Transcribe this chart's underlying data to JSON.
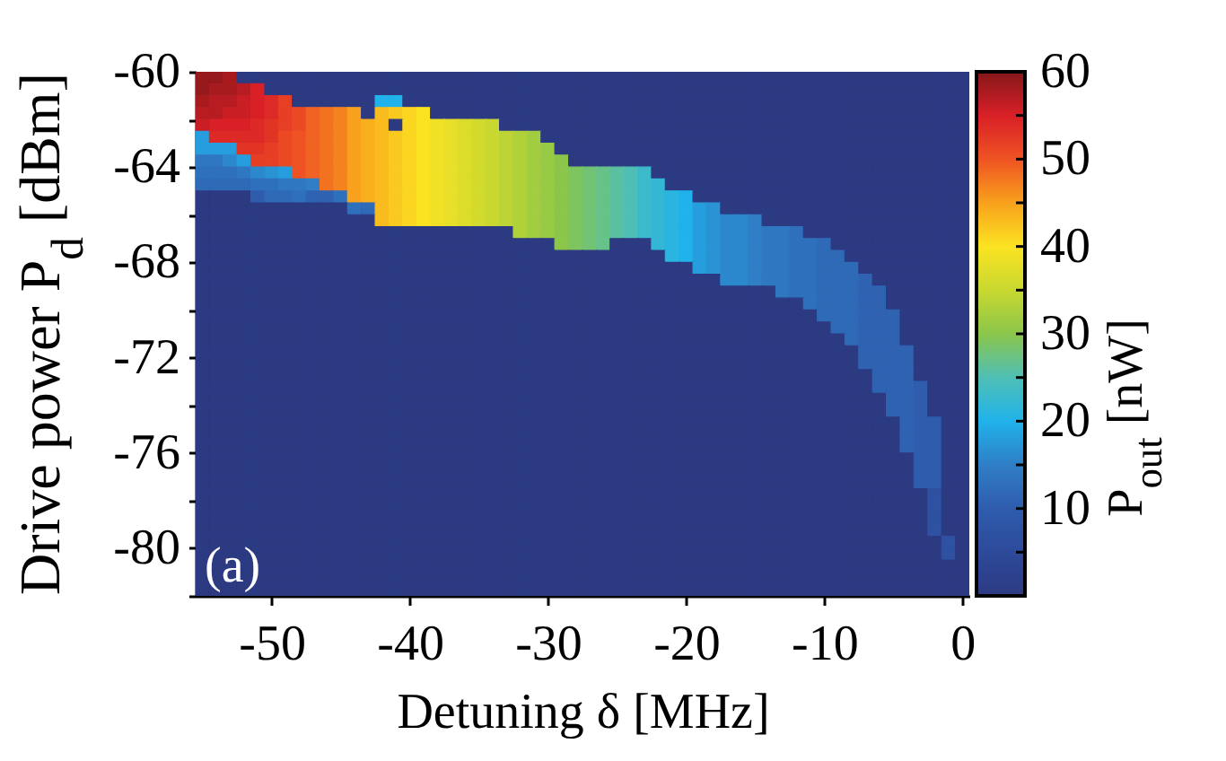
{
  "chart_data": {
    "type": "heatmap",
    "xlabel": "Detuning δ [MHz]",
    "ylabel": "Drive power P$_{d}$ [dBm]",
    "clabel": "P$_{out}$ [nW]",
    "annotations": [
      "(a)"
    ],
    "x": [
      -55,
      -54,
      -53,
      -52,
      -51,
      -50,
      -49,
      -48,
      -47,
      -46,
      -45,
      -44,
      -43,
      -42,
      -41,
      -40,
      -39,
      -38,
      -37,
      -36,
      -35,
      -34,
      -33,
      -32,
      -31,
      -30,
      -29,
      -28,
      -27,
      -26,
      -25,
      -24,
      -23,
      -22,
      -21,
      -20,
      -19,
      -18,
      -17,
      -16,
      -15,
      -14,
      -13,
      -12,
      -11,
      -10,
      -9,
      -8,
      -7,
      -6,
      -5,
      -4,
      -3,
      -2,
      -1,
      0
    ],
    "y": [
      -60.25,
      -60.75,
      -61.25,
      -61.75,
      -62.25,
      -62.75,
      -63.25,
      -63.75,
      -64.25,
      -64.75,
      -65.25,
      -65.75,
      -66.25,
      -66.75,
      -67.25,
      -67.75,
      -68.25,
      -68.75,
      -69.25,
      -69.75,
      -70.25,
      -70.75,
      -71.25,
      -71.75,
      -72.25,
      -72.75,
      -73.25,
      -73.75,
      -74.25,
      -74.75,
      -75.25,
      -75.75,
      -76.25,
      -76.75,
      -77.25,
      -77.75,
      -78.25,
      -78.75,
      -79.25,
      -79.75,
      -80.25,
      -80.75,
      -81.25,
      -81.75
    ],
    "xlim": [
      -55.5,
      0.5
    ],
    "ylim": [
      -82,
      -60
    ],
    "xticks": [
      -50,
      -40,
      -30,
      -20,
      -10,
      0
    ],
    "yticks": [
      {
        "value": -82,
        "label": null
      },
      -80,
      {
        "value": -78,
        "label": null
      },
      -76,
      {
        "value": -74,
        "label": null
      },
      -72,
      {
        "value": -70,
        "label": null
      },
      -68,
      {
        "value": -66,
        "label": null
      },
      -64,
      {
        "value": -62,
        "label": null
      },
      -60
    ],
    "clim": [
      0,
      60
    ],
    "cticks": [
      {
        "value": 5,
        "label": null
      },
      10,
      {
        "value": 15,
        "label": null
      },
      20,
      {
        "value": 25,
        "label": null
      },
      30,
      {
        "value": 35,
        "label": null
      },
      40,
      {
        "value": 45,
        "label": null
      },
      50,
      {
        "value": 55,
        "label": null
      },
      60
    ],
    "colors": [
      "#2c3a82",
      "#2d4a9a",
      "#2f5cad",
      "#2f7ec6",
      "#20b2ea",
      "#4fbfb5",
      "#8bc64a",
      "#c8d830",
      "#fbe322",
      "#f8a11c",
      "#ef5323",
      "#d92027",
      "#85171a"
    ],
    "cells": [
      [
        59,
        59,
        58,
        0,
        0,
        0,
        0,
        0,
        0,
        0,
        0,
        0,
        0,
        0,
        0,
        0,
        0,
        0,
        0,
        0,
        0,
        0,
        0,
        0,
        0,
        0,
        0,
        0,
        0,
        0,
        0,
        0,
        0,
        0,
        0,
        0,
        0,
        0,
        0,
        0,
        0,
        0,
        0,
        0,
        0,
        0,
        0,
        0,
        0,
        0,
        0,
        0,
        0,
        0,
        0,
        0
      ],
      [
        59,
        58,
        58,
        57,
        55,
        0,
        0,
        0,
        0,
        0,
        0,
        0,
        0,
        0,
        0,
        0,
        0,
        0,
        0,
        0,
        0,
        0,
        0,
        0,
        0,
        0,
        0,
        0,
        0,
        0,
        0,
        0,
        0,
        0,
        0,
        0,
        0,
        0,
        0,
        0,
        0,
        0,
        0,
        0,
        0,
        0,
        0,
        0,
        0,
        0,
        0,
        0,
        0,
        0,
        0,
        0
      ],
      [
        58,
        57,
        57,
        56,
        55,
        54,
        52,
        0,
        0,
        0,
        0,
        0,
        0,
        20,
        20,
        0,
        0,
        0,
        0,
        0,
        0,
        0,
        0,
        0,
        0,
        0,
        0,
        0,
        0,
        0,
        0,
        0,
        0,
        0,
        0,
        0,
        0,
        0,
        0,
        0,
        0,
        0,
        0,
        0,
        0,
        0,
        0,
        0,
        0,
        0,
        0,
        0,
        0,
        0,
        0,
        0
      ],
      [
        57,
        57,
        56,
        56,
        55,
        54,
        52,
        51,
        49,
        48,
        47,
        45,
        0,
        43,
        42,
        41,
        40,
        0,
        0,
        0,
        0,
        0,
        0,
        0,
        0,
        0,
        0,
        0,
        0,
        0,
        0,
        0,
        0,
        0,
        0,
        0,
        0,
        0,
        0,
        0,
        0,
        0,
        0,
        0,
        0,
        0,
        0,
        0,
        0,
        0,
        0,
        0,
        0,
        0,
        0,
        0
      ],
      [
        56,
        55,
        55,
        55,
        54,
        53,
        52,
        51,
        49,
        48,
        47,
        45,
        44,
        43,
        0,
        41,
        40,
        39,
        38,
        37,
        36,
        35,
        0,
        0,
        0,
        0,
        0,
        0,
        0,
        0,
        0,
        0,
        0,
        0,
        0,
        0,
        0,
        0,
        0,
        0,
        0,
        0,
        0,
        0,
        0,
        0,
        0,
        0,
        0,
        0,
        0,
        0,
        0,
        0,
        0,
        0
      ],
      [
        18,
        54,
        54,
        54,
        54,
        53,
        51,
        50,
        49,
        48,
        47,
        45,
        44,
        43,
        42,
        41,
        40,
        39,
        38,
        37,
        36,
        35,
        34,
        33,
        32,
        0,
        0,
        0,
        0,
        0,
        0,
        0,
        0,
        0,
        0,
        0,
        0,
        0,
        0,
        0,
        0,
        0,
        0,
        0,
        0,
        0,
        0,
        0,
        0,
        0,
        0,
        0,
        0,
        0,
        0,
        0
      ],
      [
        18,
        18,
        18,
        53,
        53,
        52,
        51,
        50,
        49,
        48,
        47,
        45,
        44,
        43,
        42,
        41,
        40,
        39,
        38,
        37,
        36,
        35,
        34,
        33,
        32,
        31,
        0,
        0,
        0,
        0,
        0,
        0,
        0,
        0,
        0,
        0,
        0,
        0,
        0,
        0,
        0,
        0,
        0,
        0,
        0,
        0,
        0,
        0,
        0,
        0,
        0,
        0,
        0,
        0,
        0,
        0
      ],
      [
        14,
        14,
        16,
        18,
        52,
        52,
        51,
        50,
        49,
        48,
        47,
        45,
        44,
        43,
        42,
        41,
        40,
        39,
        38,
        37,
        36,
        35,
        34,
        33,
        32,
        31,
        30,
        0,
        0,
        0,
        0,
        0,
        0,
        0,
        0,
        0,
        0,
        0,
        0,
        0,
        0,
        0,
        0,
        0,
        0,
        0,
        0,
        0,
        0,
        0,
        0,
        0,
        0,
        0,
        0,
        0
      ],
      [
        13,
        13,
        13,
        14,
        16,
        17,
        18,
        50,
        49,
        48,
        47,
        45,
        44,
        43,
        42,
        41,
        40,
        39,
        38,
        37,
        36,
        35,
        34,
        33,
        32,
        31,
        30,
        29,
        28,
        27,
        26,
        25,
        23,
        0,
        0,
        0,
        0,
        0,
        0,
        0,
        0,
        0,
        0,
        0,
        0,
        0,
        0,
        0,
        0,
        0,
        0,
        0,
        0,
        0,
        0,
        0
      ],
      [
        12,
        12,
        12,
        12,
        13,
        13,
        14,
        14,
        15,
        48,
        47,
        45,
        44,
        43,
        42,
        41,
        40,
        39,
        38,
        37,
        36,
        35,
        34,
        33,
        32,
        31,
        30,
        29,
        28,
        27,
        26,
        25,
        23,
        22,
        0,
        0,
        0,
        0,
        0,
        0,
        0,
        0,
        0,
        0,
        0,
        0,
        0,
        0,
        0,
        0,
        0,
        0,
        0,
        0,
        0,
        0
      ],
      [
        0,
        0,
        0,
        0,
        10,
        12,
        12,
        13,
        11,
        11,
        13,
        45,
        44,
        43,
        42,
        41,
        40,
        39,
        38,
        37,
        36,
        35,
        34,
        33,
        32,
        31,
        30,
        29,
        28,
        27,
        26,
        25,
        23,
        22,
        21,
        20,
        0,
        0,
        0,
        0,
        0,
        0,
        0,
        0,
        0,
        0,
        0,
        0,
        0,
        0,
        0,
        0,
        0,
        0,
        0,
        0
      ],
      [
        0,
        0,
        0,
        0,
        0,
        0,
        0,
        0,
        0,
        0,
        0,
        13,
        12,
        43,
        42,
        41,
        40,
        39,
        38,
        37,
        36,
        35,
        34,
        33,
        32,
        31,
        30,
        29,
        28,
        27,
        26,
        25,
        23,
        22,
        21,
        20,
        18,
        17,
        0,
        0,
        0,
        0,
        0,
        0,
        0,
        0,
        0,
        0,
        0,
        0,
        0,
        0,
        0,
        0,
        0,
        0
      ],
      [
        0,
        0,
        0,
        0,
        0,
        0,
        0,
        0,
        0,
        0,
        0,
        0,
        0,
        43,
        42,
        41,
        40,
        39,
        38,
        37,
        36,
        35,
        34,
        33,
        32,
        31,
        30,
        29,
        28,
        27,
        26,
        25,
        23,
        22,
        21,
        20,
        18,
        17,
        16,
        16,
        15,
        0,
        0,
        0,
        0,
        0,
        0,
        0,
        0,
        0,
        0,
        0,
        0,
        0,
        0,
        0
      ],
      [
        0,
        0,
        0,
        0,
        0,
        0,
        0,
        0,
        0,
        0,
        0,
        0,
        0,
        0,
        0,
        0,
        0,
        0,
        0,
        0,
        0,
        0,
        0,
        33,
        32,
        31,
        30,
        29,
        28,
        27,
        26,
        25,
        23,
        22,
        21,
        20,
        18,
        17,
        16,
        16,
        15,
        14,
        14,
        13,
        0,
        0,
        0,
        0,
        0,
        0,
        0,
        0,
        0,
        0,
        0,
        0
      ],
      [
        0,
        0,
        0,
        0,
        0,
        0,
        0,
        0,
        0,
        0,
        0,
        0,
        0,
        0,
        0,
        0,
        0,
        0,
        0,
        0,
        0,
        0,
        0,
        0,
        0,
        0,
        30,
        29,
        28,
        27,
        0,
        0,
        0,
        22,
        21,
        20,
        18,
        17,
        16,
        16,
        15,
        14,
        14,
        13,
        13,
        12,
        0,
        0,
        0,
        0,
        0,
        0,
        0,
        0,
        0,
        0
      ],
      [
        0,
        0,
        0,
        0,
        0,
        0,
        0,
        0,
        0,
        0,
        0,
        0,
        0,
        0,
        0,
        0,
        0,
        0,
        0,
        0,
        0,
        0,
        0,
        0,
        0,
        0,
        0,
        0,
        0,
        0,
        0,
        0,
        0,
        0,
        21,
        20,
        18,
        17,
        16,
        16,
        15,
        14,
        14,
        13,
        13,
        12,
        12,
        0,
        0,
        0,
        0,
        0,
        0,
        0,
        0,
        0
      ],
      [
        0,
        0,
        0,
        0,
        0,
        0,
        0,
        0,
        0,
        0,
        0,
        0,
        0,
        0,
        0,
        0,
        0,
        0,
        0,
        0,
        0,
        0,
        0,
        0,
        0,
        0,
        0,
        0,
        0,
        0,
        0,
        0,
        0,
        0,
        0,
        0,
        18,
        17,
        16,
        16,
        15,
        14,
        14,
        13,
        13,
        12,
        12,
        12,
        0,
        0,
        0,
        0,
        0,
        0,
        0,
        0
      ],
      [
        0,
        0,
        0,
        0,
        0,
        0,
        0,
        0,
        0,
        0,
        0,
        0,
        0,
        0,
        0,
        0,
        0,
        0,
        0,
        0,
        0,
        0,
        0,
        0,
        0,
        0,
        0,
        0,
        0,
        0,
        0,
        0,
        0,
        0,
        0,
        0,
        0,
        0,
        16,
        16,
        15,
        14,
        14,
        13,
        13,
        12,
        12,
        12,
        11,
        0,
        0,
        0,
        0,
        0,
        0,
        0
      ],
      [
        0,
        0,
        0,
        0,
        0,
        0,
        0,
        0,
        0,
        0,
        0,
        0,
        0,
        0,
        0,
        0,
        0,
        0,
        0,
        0,
        0,
        0,
        0,
        0,
        0,
        0,
        0,
        0,
        0,
        0,
        0,
        0,
        0,
        0,
        0,
        0,
        0,
        0,
        0,
        0,
        0,
        0,
        14,
        13,
        13,
        12,
        12,
        12,
        11,
        11,
        0,
        0,
        0,
        0,
        0,
        0
      ],
      [
        0,
        0,
        0,
        0,
        0,
        0,
        0,
        0,
        0,
        0,
        0,
        0,
        0,
        0,
        0,
        0,
        0,
        0,
        0,
        0,
        0,
        0,
        0,
        0,
        0,
        0,
        0,
        0,
        0,
        0,
        0,
        0,
        0,
        0,
        0,
        0,
        0,
        0,
        0,
        0,
        0,
        0,
        0,
        0,
        13,
        12,
        12,
        12,
        11,
        11,
        0,
        0,
        0,
        0,
        0,
        0
      ],
      [
        0,
        0,
        0,
        0,
        0,
        0,
        0,
        0,
        0,
        0,
        0,
        0,
        0,
        0,
        0,
        0,
        0,
        0,
        0,
        0,
        0,
        0,
        0,
        0,
        0,
        0,
        0,
        0,
        0,
        0,
        0,
        0,
        0,
        0,
        0,
        0,
        0,
        0,
        0,
        0,
        0,
        0,
        0,
        0,
        0,
        12,
        12,
        12,
        11,
        11,
        11,
        0,
        0,
        0,
        0,
        0
      ],
      [
        0,
        0,
        0,
        0,
        0,
        0,
        0,
        0,
        0,
        0,
        0,
        0,
        0,
        0,
        0,
        0,
        0,
        0,
        0,
        0,
        0,
        0,
        0,
        0,
        0,
        0,
        0,
        0,
        0,
        0,
        0,
        0,
        0,
        0,
        0,
        0,
        0,
        0,
        0,
        0,
        0,
        0,
        0,
        0,
        0,
        0,
        12,
        12,
        11,
        11,
        11,
        0,
        0,
        0,
        0,
        0
      ],
      [
        0,
        0,
        0,
        0,
        0,
        0,
        0,
        0,
        0,
        0,
        0,
        0,
        0,
        0,
        0,
        0,
        0,
        0,
        0,
        0,
        0,
        0,
        0,
        0,
        0,
        0,
        0,
        0,
        0,
        0,
        0,
        0,
        0,
        0,
        0,
        0,
        0,
        0,
        0,
        0,
        0,
        0,
        0,
        0,
        0,
        0,
        0,
        12,
        11,
        11,
        11,
        0,
        0,
        0,
        0,
        0
      ],
      [
        0,
        0,
        0,
        0,
        0,
        0,
        0,
        0,
        0,
        0,
        0,
        0,
        0,
        0,
        0,
        0,
        0,
        0,
        0,
        0,
        0,
        0,
        0,
        0,
        0,
        0,
        0,
        0,
        0,
        0,
        0,
        0,
        0,
        0,
        0,
        0,
        0,
        0,
        0,
        0,
        0,
        0,
        0,
        0,
        0,
        0,
        0,
        0,
        11,
        11,
        11,
        11,
        0,
        0,
        0,
        0
      ],
      [
        0,
        0,
        0,
        0,
        0,
        0,
        0,
        0,
        0,
        0,
        0,
        0,
        0,
        0,
        0,
        0,
        0,
        0,
        0,
        0,
        0,
        0,
        0,
        0,
        0,
        0,
        0,
        0,
        0,
        0,
        0,
        0,
        0,
        0,
        0,
        0,
        0,
        0,
        0,
        0,
        0,
        0,
        0,
        0,
        0,
        0,
        0,
        0,
        11,
        11,
        11,
        11,
        0,
        0,
        0,
        0
      ],
      [
        0,
        0,
        0,
        0,
        0,
        0,
        0,
        0,
        0,
        0,
        0,
        0,
        0,
        0,
        0,
        0,
        0,
        0,
        0,
        0,
        0,
        0,
        0,
        0,
        0,
        0,
        0,
        0,
        0,
        0,
        0,
        0,
        0,
        0,
        0,
        0,
        0,
        0,
        0,
        0,
        0,
        0,
        0,
        0,
        0,
        0,
        0,
        0,
        0,
        11,
        11,
        11,
        0,
        0,
        0,
        0
      ],
      [
        0,
        0,
        0,
        0,
        0,
        0,
        0,
        0,
        0,
        0,
        0,
        0,
        0,
        0,
        0,
        0,
        0,
        0,
        0,
        0,
        0,
        0,
        0,
        0,
        0,
        0,
        0,
        0,
        0,
        0,
        0,
        0,
        0,
        0,
        0,
        0,
        0,
        0,
        0,
        0,
        0,
        0,
        0,
        0,
        0,
        0,
        0,
        0,
        0,
        11,
        11,
        11,
        10,
        0,
        0,
        0
      ],
      [
        0,
        0,
        0,
        0,
        0,
        0,
        0,
        0,
        0,
        0,
        0,
        0,
        0,
        0,
        0,
        0,
        0,
        0,
        0,
        0,
        0,
        0,
        0,
        0,
        0,
        0,
        0,
        0,
        0,
        0,
        0,
        0,
        0,
        0,
        0,
        0,
        0,
        0,
        0,
        0,
        0,
        0,
        0,
        0,
        0,
        0,
        0,
        0,
        0,
        0,
        11,
        11,
        10,
        0,
        0,
        0
      ],
      [
        0,
        0,
        0,
        0,
        0,
        0,
        0,
        0,
        0,
        0,
        0,
        0,
        0,
        0,
        0,
        0,
        0,
        0,
        0,
        0,
        0,
        0,
        0,
        0,
        0,
        0,
        0,
        0,
        0,
        0,
        0,
        0,
        0,
        0,
        0,
        0,
        0,
        0,
        0,
        0,
        0,
        0,
        0,
        0,
        0,
        0,
        0,
        0,
        0,
        0,
        11,
        11,
        10,
        0,
        0,
        0
      ],
      [
        0,
        0,
        0,
        0,
        0,
        0,
        0,
        0,
        0,
        0,
        0,
        0,
        0,
        0,
        0,
        0,
        0,
        0,
        0,
        0,
        0,
        0,
        0,
        0,
        0,
        0,
        0,
        0,
        0,
        0,
        0,
        0,
        0,
        0,
        0,
        0,
        0,
        0,
        0,
        0,
        0,
        0,
        0,
        0,
        0,
        0,
        0,
        0,
        0,
        0,
        0,
        11,
        10,
        10,
        0,
        0
      ],
      [
        0,
        0,
        0,
        0,
        0,
        0,
        0,
        0,
        0,
        0,
        0,
        0,
        0,
        0,
        0,
        0,
        0,
        0,
        0,
        0,
        0,
        0,
        0,
        0,
        0,
        0,
        0,
        0,
        0,
        0,
        0,
        0,
        0,
        0,
        0,
        0,
        0,
        0,
        0,
        0,
        0,
        0,
        0,
        0,
        0,
        0,
        0,
        0,
        0,
        0,
        0,
        11,
        10,
        10,
        0,
        0
      ],
      [
        0,
        0,
        0,
        0,
        0,
        0,
        0,
        0,
        0,
        0,
        0,
        0,
        0,
        0,
        0,
        0,
        0,
        0,
        0,
        0,
        0,
        0,
        0,
        0,
        0,
        0,
        0,
        0,
        0,
        0,
        0,
        0,
        0,
        0,
        0,
        0,
        0,
        0,
        0,
        0,
        0,
        0,
        0,
        0,
        0,
        0,
        0,
        0,
        0,
        0,
        0,
        11,
        10,
        10,
        0,
        0
      ],
      [
        0,
        0,
        0,
        0,
        0,
        0,
        0,
        0,
        0,
        0,
        0,
        0,
        0,
        0,
        0,
        0,
        0,
        0,
        0,
        0,
        0,
        0,
        0,
        0,
        0,
        0,
        0,
        0,
        0,
        0,
        0,
        0,
        0,
        0,
        0,
        0,
        0,
        0,
        0,
        0,
        0,
        0,
        0,
        0,
        0,
        0,
        0,
        0,
        0,
        0,
        0,
        0,
        10,
        10,
        0,
        0
      ],
      [
        0,
        0,
        0,
        0,
        0,
        0,
        0,
        0,
        0,
        0,
        0,
        0,
        0,
        0,
        0,
        0,
        0,
        0,
        0,
        0,
        0,
        0,
        0,
        0,
        0,
        0,
        0,
        0,
        0,
        0,
        0,
        0,
        0,
        0,
        0,
        0,
        0,
        0,
        0,
        0,
        0,
        0,
        0,
        0,
        0,
        0,
        0,
        0,
        0,
        0,
        0,
        0,
        10,
        10,
        0,
        0
      ],
      [
        0,
        0,
        0,
        0,
        0,
        0,
        0,
        0,
        0,
        0,
        0,
        0,
        0,
        0,
        0,
        0,
        0,
        0,
        0,
        0,
        0,
        0,
        0,
        0,
        0,
        0,
        0,
        0,
        0,
        0,
        0,
        0,
        0,
        0,
        0,
        0,
        0,
        0,
        0,
        0,
        0,
        0,
        0,
        0,
        0,
        0,
        0,
        0,
        0,
        0,
        0,
        0,
        10,
        10,
        0,
        0
      ],
      [
        0,
        0,
        0,
        0,
        0,
        0,
        0,
        0,
        0,
        0,
        0,
        0,
        0,
        0,
        0,
        0,
        0,
        0,
        0,
        0,
        0,
        0,
        0,
        0,
        0,
        0,
        0,
        0,
        0,
        0,
        0,
        0,
        0,
        0,
        0,
        0,
        0,
        0,
        0,
        0,
        0,
        0,
        0,
        0,
        0,
        0,
        0,
        0,
        0,
        0,
        0,
        0,
        0,
        7,
        0,
        0
      ],
      [
        0,
        0,
        0,
        0,
        0,
        0,
        0,
        0,
        0,
        0,
        0,
        0,
        0,
        0,
        0,
        0,
        0,
        0,
        0,
        0,
        0,
        0,
        0,
        0,
        0,
        0,
        0,
        0,
        0,
        0,
        0,
        0,
        0,
        0,
        0,
        0,
        0,
        0,
        0,
        0,
        0,
        0,
        0,
        0,
        0,
        0,
        0,
        0,
        0,
        0,
        0,
        0,
        0,
        7,
        0,
        0
      ],
      [
        0,
        0,
        0,
        0,
        0,
        0,
        0,
        0,
        0,
        0,
        0,
        0,
        0,
        0,
        0,
        0,
        0,
        0,
        0,
        0,
        0,
        0,
        0,
        0,
        0,
        0,
        0,
        0,
        0,
        0,
        0,
        0,
        0,
        0,
        0,
        0,
        0,
        0,
        0,
        0,
        0,
        0,
        0,
        0,
        0,
        0,
        0,
        0,
        0,
        0,
        0,
        0,
        0,
        7,
        0,
        0
      ],
      [
        0,
        0,
        0,
        0,
        0,
        0,
        0,
        0,
        0,
        0,
        0,
        0,
        0,
        0,
        0,
        0,
        0,
        0,
        0,
        0,
        0,
        0,
        0,
        0,
        0,
        0,
        0,
        0,
        0,
        0,
        0,
        0,
        0,
        0,
        0,
        0,
        0,
        0,
        0,
        0,
        0,
        0,
        0,
        0,
        0,
        0,
        0,
        0,
        0,
        0,
        0,
        0,
        0,
        7,
        0,
        0
      ],
      [
        0,
        0,
        0,
        0,
        0,
        0,
        0,
        0,
        0,
        0,
        0,
        0,
        0,
        0,
        0,
        0,
        0,
        0,
        0,
        0,
        0,
        0,
        0,
        0,
        0,
        0,
        0,
        0,
        0,
        0,
        0,
        0,
        0,
        0,
        0,
        0,
        0,
        0,
        0,
        0,
        0,
        0,
        0,
        0,
        0,
        0,
        0,
        0,
        0,
        0,
        0,
        0,
        0,
        0,
        7,
        0
      ],
      [
        0,
        0,
        0,
        0,
        0,
        0,
        0,
        0,
        0,
        0,
        0,
        0,
        0,
        0,
        0,
        0,
        0,
        0,
        0,
        0,
        0,
        0,
        0,
        0,
        0,
        0,
        0,
        0,
        0,
        0,
        0,
        0,
        0,
        0,
        0,
        0,
        0,
        0,
        0,
        0,
        0,
        0,
        0,
        0,
        0,
        0,
        0,
        0,
        0,
        0,
        0,
        0,
        0,
        0,
        7,
        0
      ],
      [
        0,
        0,
        0,
        0,
        0,
        0,
        0,
        0,
        0,
        0,
        0,
        0,
        0,
        0,
        0,
        0,
        0,
        0,
        0,
        0,
        0,
        0,
        0,
        0,
        0,
        0,
        0,
        0,
        0,
        0,
        0,
        0,
        0,
        0,
        0,
        0,
        0,
        0,
        0,
        0,
        0,
        0,
        0,
        0,
        0,
        0,
        0,
        0,
        0,
        0,
        0,
        0,
        0,
        0,
        0,
        0
      ],
      [
        0,
        0,
        0,
        0,
        0,
        0,
        0,
        0,
        0,
        0,
        0,
        0,
        0,
        0,
        0,
        0,
        0,
        0,
        0,
        0,
        0,
        0,
        0,
        0,
        0,
        0,
        0,
        0,
        0,
        0,
        0,
        0,
        0,
        0,
        0,
        0,
        0,
        0,
        0,
        0,
        0,
        0,
        0,
        0,
        0,
        0,
        0,
        0,
        0,
        0,
        0,
        0,
        0,
        0,
        0,
        0
      ],
      [
        0,
        0,
        0,
        0,
        0,
        0,
        0,
        0,
        0,
        0,
        0,
        0,
        0,
        0,
        0,
        0,
        0,
        0,
        0,
        0,
        0,
        0,
        0,
        0,
        0,
        0,
        0,
        0,
        0,
        0,
        0,
        0,
        0,
        0,
        0,
        0,
        0,
        0,
        0,
        0,
        0,
        0,
        0,
        0,
        0,
        0,
        0,
        0,
        0,
        0,
        0,
        0,
        0,
        0,
        0,
        0
      ]
    ]
  }
}
